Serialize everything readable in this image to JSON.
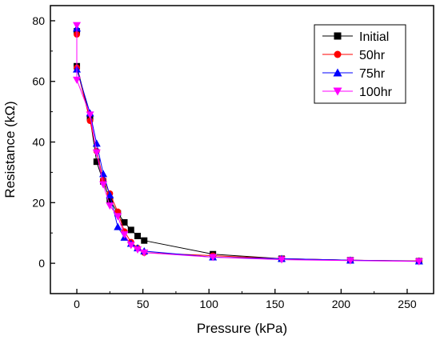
{
  "chart_data": {
    "type": "line",
    "xlabel": "Pressure (kPa)",
    "ylabel": "Resistance (kΩ)",
    "xlim": [
      -20,
      270
    ],
    "ylim": [
      -10,
      85
    ],
    "x_ticks": [
      "0",
      "50",
      "100",
      "150",
      "200",
      "250"
    ],
    "y_ticks": [
      "0",
      "20",
      "40",
      "60",
      "80"
    ],
    "grid": false,
    "legend_position": "top-right",
    "series": [
      {
        "name": "Initial",
        "color": "#000000",
        "marker": "square",
        "x": [
          0,
          0,
          10,
          15,
          20,
          25,
          31,
          36,
          41,
          46,
          51,
          103,
          155,
          207,
          259
        ],
        "y": [
          76.5,
          65.0,
          48.0,
          33.5,
          27.0,
          21.0,
          16.5,
          13.5,
          11.0,
          9.0,
          7.5,
          3.0,
          1.5,
          1.0,
          0.7
        ]
      },
      {
        "name": "50hr",
        "color": "#ff0000",
        "marker": "circle",
        "x": [
          0,
          0,
          10,
          15,
          20,
          25,
          31,
          36,
          41,
          46,
          51,
          103,
          155,
          207,
          259
        ],
        "y": [
          75.5,
          64.5,
          47.0,
          37.0,
          27.5,
          23.0,
          17.0,
          10.5,
          7.0,
          5.0,
          3.5,
          2.5,
          1.5,
          1.0,
          0.8
        ]
      },
      {
        "name": "75hr",
        "color": "#0000ff",
        "marker": "triangle-up",
        "x": [
          0,
          0,
          10,
          15,
          20,
          25,
          31,
          36,
          41,
          46,
          51,
          103,
          155,
          207,
          259
        ],
        "y": [
          77.5,
          64.0,
          49.5,
          39.5,
          29.5,
          22.5,
          12.0,
          8.5,
          6.5,
          5.0,
          4.0,
          2.0,
          1.5,
          1.0,
          0.7
        ]
      },
      {
        "name": "100hr",
        "color": "#ff00ff",
        "marker": "triangle-down",
        "x": [
          0,
          0,
          10,
          15,
          20,
          25,
          31,
          36,
          41,
          46,
          51,
          103,
          155,
          207,
          259
        ],
        "y": [
          78.5,
          60.5,
          49.0,
          36.5,
          26.0,
          19.0,
          15.5,
          9.5,
          6.0,
          4.5,
          3.5,
          2.0,
          1.2,
          0.9,
          0.6
        ]
      }
    ]
  }
}
